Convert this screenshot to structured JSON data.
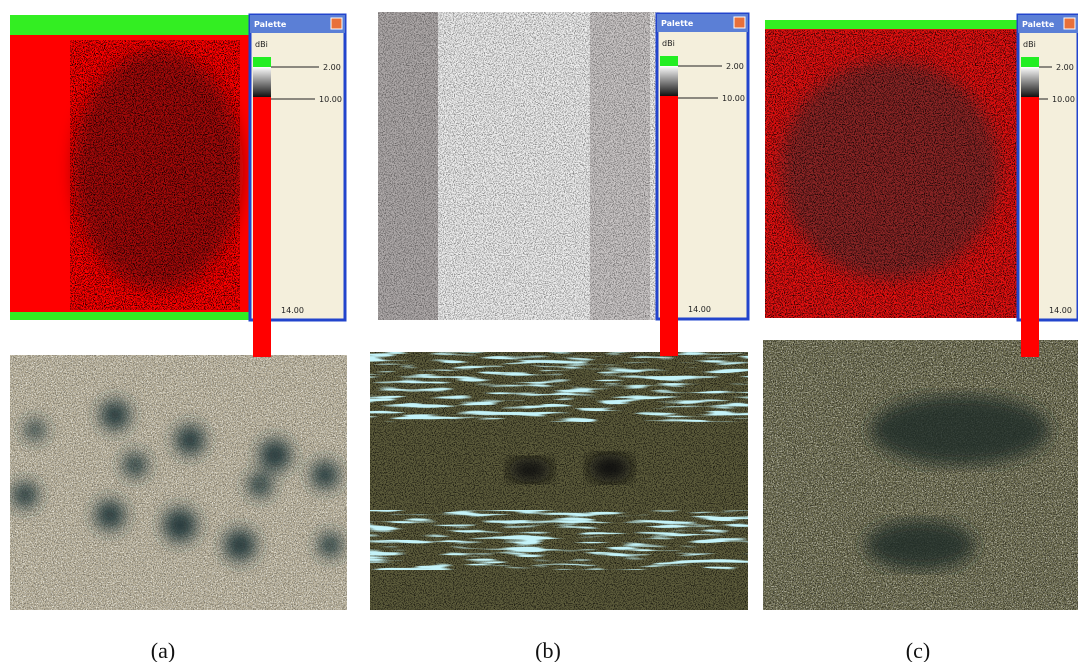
{
  "panels": [
    {
      "label": "(a)",
      "palette": {
        "title": "Palette",
        "unit": "dBi",
        "labels": [
          "2.00",
          "10.00",
          "14.00"
        ]
      }
    },
    {
      "label": "(b)",
      "palette": {
        "title": "Palette",
        "unit": "dBi",
        "labels": [
          "2.00",
          "10.00",
          "14.00"
        ]
      }
    },
    {
      "label": "(c)",
      "palette": {
        "title": "Palette",
        "unit": "dBi",
        "labels": [
          "2.00",
          "10.00",
          "14.00"
        ]
      }
    }
  ]
}
